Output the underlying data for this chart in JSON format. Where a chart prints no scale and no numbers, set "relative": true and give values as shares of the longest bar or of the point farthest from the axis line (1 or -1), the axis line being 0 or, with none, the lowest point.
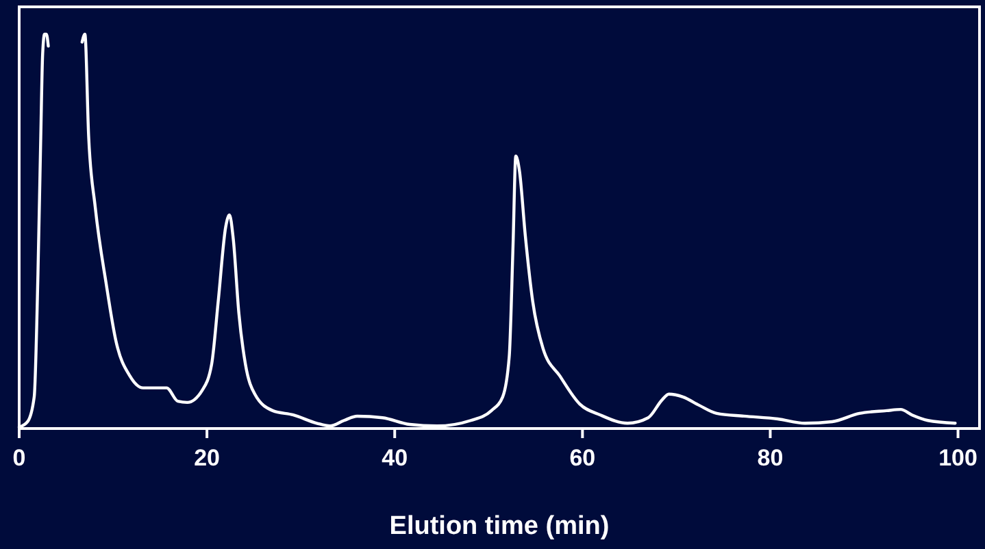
{
  "chart_data": {
    "type": "line",
    "xlabel": "Elution time (min)",
    "relative": true,
    "xlim": [
      0,
      102
    ],
    "xticks": [
      0,
      20,
      40,
      60,
      80,
      100
    ],
    "grid": false,
    "marker": "none",
    "line_style": "solid",
    "series": [
      {
        "color": "#ffffff",
        "x": [
          0,
          0.9,
          1.6,
          2.0,
          2.3,
          2.5,
          2.7,
          2.9,
          3.1,
          4.5,
          6.7,
          7.0,
          7.4,
          8.1,
          9.3,
          10.3,
          11.8,
          13.2,
          15.1,
          15.7,
          16.9,
          17.9,
          19.5,
          20.5,
          21.2,
          22,
          22.4,
          22.8,
          23.4,
          24.1,
          25.1,
          27,
          29.2,
          31.7,
          33.1,
          34.6,
          36,
          38.7,
          41.6,
          44.5,
          48.1,
          50.3,
          51.5,
          52.2,
          52.6,
          52.9,
          53.3,
          53.9,
          54.7,
          55.8,
          57.6,
          59.7,
          61.9,
          64.8,
          67,
          68.5,
          69.2,
          70.7,
          72.4,
          74.3,
          77.2,
          80.8,
          83.7,
          86.6,
          89.5,
          92.4,
          93.9,
          95.1,
          96.8,
          99.7
        ],
        "values": [
          0,
          0.014,
          0.077,
          0.39,
          0.74,
          0.95,
          1.0,
          1.0,
          0.97,
          null,
          0.98,
          1.0,
          0.74,
          0.56,
          0.36,
          0.22,
          0.13,
          0.1,
          0.1,
          0.1,
          0.066,
          0.063,
          0.094,
          0.16,
          0.32,
          0.51,
          0.54,
          0.48,
          0.29,
          0.16,
          0.084,
          0.042,
          0.031,
          0.01,
          0.003,
          0.017,
          0.028,
          0.024,
          0.007,
          0.003,
          0.017,
          0.042,
          0.077,
          0.18,
          0.46,
          0.69,
          0.65,
          0.49,
          0.32,
          0.2,
          0.13,
          0.059,
          0.031,
          0.01,
          0.024,
          0.07,
          0.084,
          0.077,
          0.056,
          0.035,
          0.028,
          0.021,
          0.01,
          0.014,
          0.035,
          0.042,
          0.045,
          0.031,
          0.017,
          0.01
        ]
      }
    ]
  }
}
